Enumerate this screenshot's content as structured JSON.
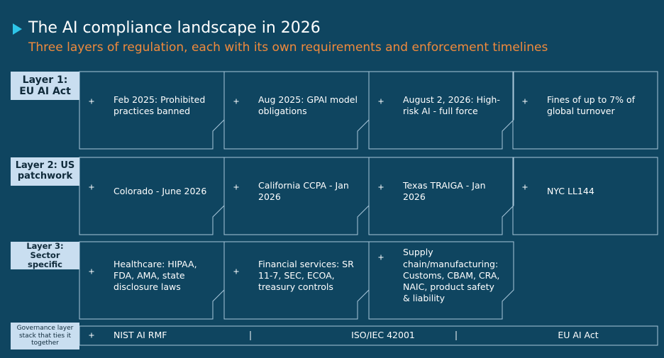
{
  "header": {
    "title": "The AI compliance landscape in 2026",
    "subtitle": "Three layers of regulation, each with its own requirements and enforcement timelines"
  },
  "layers": [
    {
      "label": "Layer 1: EU AI Act",
      "items": [
        "Feb 2025: Prohibited practices banned",
        "Aug 2025: GPAI model obligations",
        "August 2, 2026: High-risk AI - full force",
        "Fines of up to 7% of global turnover"
      ]
    },
    {
      "label": "Layer 2: US patchwork",
      "items": [
        "Colorado - June 2026",
        "California CCPA - Jan 2026",
        "Texas TRAIGA - Jan 2026",
        "NYC LL144"
      ]
    },
    {
      "label": "Layer 3: Sector specific",
      "items": [
        "Healthcare: HIPAA, FDA, AMA, state disclosure laws",
        "Financial services: SR 11-7, SEC, ECOA, treasury controls",
        "Supply chain/manufacturing: Customs, CBAM, CRA, NAIC, product safety & liability"
      ]
    }
  ],
  "governance": {
    "label": "Governance layer stack that ties it together",
    "items": [
      "NIST AI RMF",
      "ISO/IEC 42001",
      "EU AI Act"
    ]
  }
}
